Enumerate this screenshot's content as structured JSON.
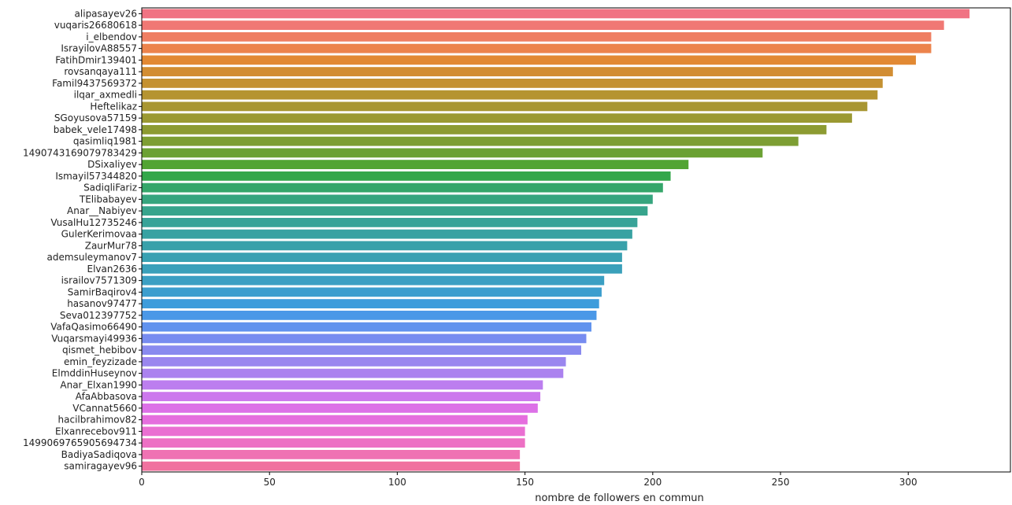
{
  "chart_data": {
    "type": "bar",
    "orientation": "horizontal",
    "title": "",
    "xlabel": "nombre de followers en commun",
    "ylabel": "",
    "xlim": [
      0,
      340
    ],
    "xticks": [
      0,
      50,
      100,
      150,
      200,
      250,
      300
    ],
    "grid": false,
    "categories": [
      "alipasayev26",
      "vuqaris26680618",
      "i_elbendov",
      "IsrayilovA88557",
      "FatihDmir139401",
      "rovsanqaya111",
      "Famil9437569372",
      "ilqar_axmedli",
      "Heftelikaz",
      "SGoyusova57159",
      "babek_vele17498",
      "qasimliq1981",
      "1490743169079783429",
      "DSixaliyev",
      "Ismayil57344820",
      "SadiqliFariz",
      "TElibabayev",
      "Anar__Nabiyev",
      "VusalHu12735246",
      "GulerKerimovaa",
      "ZaurMur78",
      "ademsuleymanov7",
      "Elvan2636",
      "israilov7571309",
      "SamirBaqirov4",
      "hasanov97477",
      "Seva012397752",
      "VafaQasimo66490",
      "Vuqarsmayi49936",
      "qismet_hebibov",
      "emin_feyzizade",
      "ElmddinHuseynov",
      "Anar_Elxan1990",
      "AfaAbbasova",
      "VCannat5660",
      "hacilbrahimov82",
      "Elxanrecebov911",
      "1499069765905694734",
      "BadiyaSadiqova",
      "samiragayev96"
    ],
    "values": [
      324,
      314,
      309,
      309,
      303,
      294,
      290,
      288,
      284,
      278,
      268,
      257,
      243,
      214,
      207,
      204,
      200,
      198,
      194,
      192,
      190,
      188,
      188,
      181,
      180,
      179,
      178,
      176,
      174,
      172,
      166,
      165,
      157,
      156,
      155,
      151,
      150,
      150,
      148,
      148
    ],
    "colors": [
      "#f07383",
      "#f07874",
      "#ef7e62",
      "#ec834c",
      "#e28933",
      "#d28d32",
      "#c49131",
      "#b59431",
      "#a89632",
      "#9b9932",
      "#8d9b32",
      "#7d9e33",
      "#6ba133",
      "#52a433",
      "#33a74a",
      "#35a66a",
      "#36a57e",
      "#37a48c",
      "#38a398",
      "#38a2a2",
      "#39a1aa",
      "#39a1b2",
      "#3aa0ba",
      "#3b9fc3",
      "#3c9ece",
      "#3d9cdb",
      "#4b98e7",
      "#6092ee",
      "#778cf0",
      "#898aef",
      "#9a86ef",
      "#ab82ef",
      "#bc7eef",
      "#cc78ed",
      "#dc71e7",
      "#e56ede",
      "#ea6fd2",
      "#ed70c4",
      "#ef72b3",
      "#f0729f"
    ]
  }
}
